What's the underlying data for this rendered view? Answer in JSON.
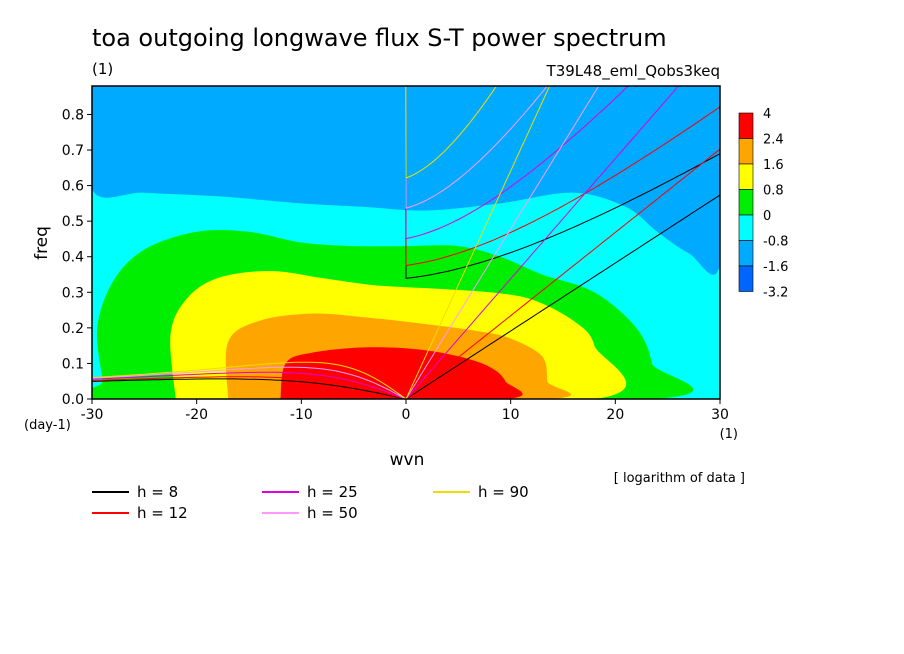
{
  "chart_data": {
    "type": "contour",
    "title": "toa outgoing longwave flux S-T power spectrum",
    "subtitle": "(1)",
    "experiment": "T39L48_eml_Qobs3keq",
    "xlabel": "wvn",
    "ylabel": "freq",
    "x_unit": "(1)",
    "y_unit": "(day-1)",
    "xlim": [
      -30,
      30
    ],
    "ylim": [
      0,
      0.88
    ],
    "x_ticks": [
      -30,
      -20,
      -10,
      0,
      10,
      20,
      30
    ],
    "x_tick_labels": [
      "-30",
      "-20",
      "-10",
      "0",
      "10",
      "20",
      "30"
    ],
    "y_ticks": [
      0,
      0.1,
      0.2,
      0.3,
      0.4,
      0.5,
      0.6,
      0.7,
      0.8
    ],
    "y_tick_labels": [
      "0.0",
      "0.1",
      "0.2",
      "0.3",
      "0.4",
      "0.5",
      "0.6",
      "0.7",
      "0.8"
    ],
    "note": "[ logarithm of data ]",
    "colorbar": {
      "labels": [
        "4",
        "2.4",
        "1.6",
        "0.8",
        "0",
        "-0.8",
        "-1.6",
        "-3.2"
      ],
      "colors": [
        "#ff0000",
        "#ffa500",
        "#ffff00",
        "#00ee00",
        "#00ffff",
        "#00aaff",
        "#0066ff"
      ]
    },
    "levels": [
      {
        "name": "-1.6",
        "color": "#0066ff",
        "regions": [
          [
            [
              -30,
              0.88
            ],
            [
              -30,
              0.75
            ],
            [
              -26,
              0.74
            ],
            [
              -21,
              0.75
            ],
            [
              -15,
              0.77
            ],
            [
              -12,
              0.8
            ],
            [
              -10,
              0.84
            ],
            [
              -9,
              0.86
            ],
            [
              -10,
              0.88
            ]
          ],
          [
            [
              26,
              0.88
            ],
            [
              27,
              0.76
            ],
            [
              29,
              0.68
            ],
            [
              30,
              0.63
            ],
            [
              30,
              0.88
            ]
          ]
        ]
      },
      {
        "name": "-0.8",
        "color": "#00aaff",
        "regions": [
          [
            [
              -30,
              0.88
            ],
            [
              -30,
              0.59
            ],
            [
              -25,
              0.58
            ],
            [
              -18,
              0.57
            ],
            [
              -10,
              0.55
            ],
            [
              -4,
              0.54
            ],
            [
              2,
              0.53
            ],
            [
              9,
              0.55
            ],
            [
              16,
              0.58
            ],
            [
              21,
              0.54
            ],
            [
              24,
              0.47
            ],
            [
              27,
              0.41
            ],
            [
              30,
              0.38
            ],
            [
              30,
              0.88
            ]
          ]
        ]
      },
      {
        "name": "0",
        "color": "#00ee00",
        "regions": [
          [
            [
              -29,
              0.05
            ],
            [
              -29.5,
              0.2
            ],
            [
              -28,
              0.33
            ],
            [
              -25,
              0.42
            ],
            [
              -20,
              0.47
            ],
            [
              -15,
              0.47
            ],
            [
              -10,
              0.44
            ],
            [
              -5,
              0.43
            ],
            [
              0,
              0.43
            ],
            [
              5,
              0.43
            ],
            [
              9,
              0.4
            ],
            [
              13,
              0.35
            ],
            [
              18,
              0.3
            ],
            [
              22,
              0.2
            ],
            [
              23.5,
              0.1
            ],
            [
              23.5,
              0
            ],
            [
              -29,
              0
            ]
          ]
        ]
      },
      {
        "name": "0.8",
        "color": "#ffff00",
        "regions": [
          [
            [
              -22,
              0
            ],
            [
              -22.5,
              0.18
            ],
            [
              -21,
              0.28
            ],
            [
              -18,
              0.34
            ],
            [
              -13,
              0.36
            ],
            [
              -8,
              0.34
            ],
            [
              -3,
              0.32
            ],
            [
              3,
              0.31
            ],
            [
              8,
              0.3
            ],
            [
              12,
              0.28
            ],
            [
              16,
              0.22
            ],
            [
              18,
              0.15
            ],
            [
              18,
              0
            ],
            [
              -22,
              0
            ]
          ]
        ]
      },
      {
        "name": "1.6",
        "color": "#ffa500",
        "regions": [
          [
            [
              -17,
              0
            ],
            [
              -17,
              0.16
            ],
            [
              -14,
              0.22
            ],
            [
              -9,
              0.24
            ],
            [
              -4,
              0.23
            ],
            [
              2,
              0.21
            ],
            [
              7,
              0.19
            ],
            [
              10,
              0.17
            ],
            [
              13,
              0.12
            ],
            [
              13.5,
              0.05
            ],
            [
              13.5,
              0
            ],
            [
              -17,
              0
            ]
          ]
        ]
      },
      {
        "name": "2.4",
        "color": "#ff0000",
        "regions": [
          [
            [
              -12,
              0
            ],
            [
              -11.5,
              0.1
            ],
            [
              -9,
              0.13
            ],
            [
              -4,
              0.145
            ],
            [
              1,
              0.14
            ],
            [
              5,
              0.12
            ],
            [
              8,
              0.09
            ],
            [
              9.5,
              0.05
            ],
            [
              9.5,
              0
            ],
            [
              -12,
              0
            ]
          ]
        ]
      }
    ],
    "series": [
      {
        "name": "h =  8",
        "color": "#000000"
      },
      {
        "name": "h = 12",
        "color": "#ff0000"
      },
      {
        "name": "h = 25",
        "color": "#dd00dd"
      },
      {
        "name": "h = 50",
        "color": "#ff99ff"
      },
      {
        "name": "h = 90",
        "color": "#eedd00"
      }
    ],
    "background_color": "#00ffff"
  }
}
